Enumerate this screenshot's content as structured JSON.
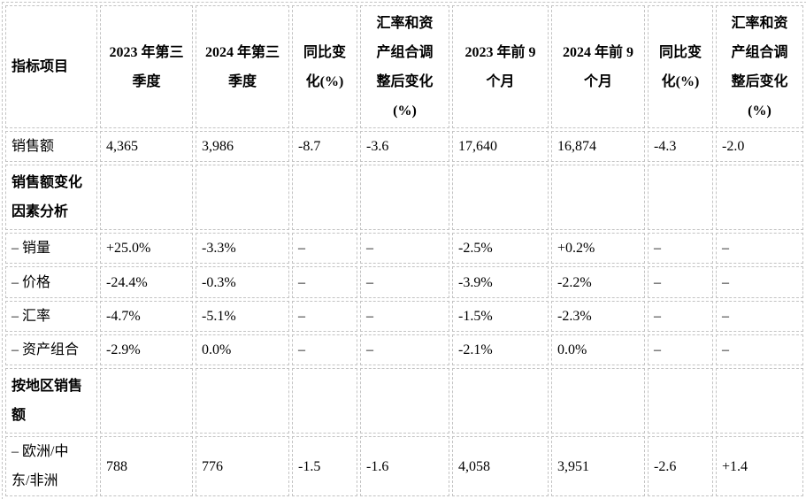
{
  "colors": {
    "background": "#ffffff",
    "text": "#000000",
    "grid_border": "#c3c3c3"
  },
  "table": {
    "columns": [
      "指标项目",
      "2023 年第三\n季度",
      "2024 年第三\n季度",
      "同比变\n化(%)",
      "汇率和资\n产组合调\n整后变化\n(%)",
      "2023 年前 9\n个月",
      "2024 年前 9\n个月",
      "同比变\n化(%)",
      "汇率和资\n产组合调\n整后变化\n(%)"
    ],
    "rows": [
      {
        "label": "销售额",
        "bold": false,
        "cells": [
          "4,365",
          "3,986",
          "-8.7",
          "-3.6",
          "17,640",
          "16,874",
          "-4.3",
          "-2.0"
        ]
      },
      {
        "label": "销售额变化\n因素分析",
        "bold": true,
        "cells": [
          "",
          "",
          "",
          "",
          "",
          "",
          "",
          ""
        ]
      },
      {
        "label": "– 销量",
        "bold": false,
        "cells": [
          "+25.0%",
          "-3.3%",
          "–",
          "–",
          "-2.5%",
          "+0.2%",
          "–",
          "–"
        ]
      },
      {
        "label": "– 价格",
        "bold": false,
        "cells": [
          "-24.4%",
          "-0.3%",
          "–",
          "–",
          "-3.9%",
          "-2.2%",
          "–",
          "–"
        ]
      },
      {
        "label": "– 汇率",
        "bold": false,
        "cells": [
          "-4.7%",
          "-5.1%",
          "–",
          "–",
          "-1.5%",
          "-2.3%",
          "–",
          "–"
        ]
      },
      {
        "label": "– 资产组合",
        "bold": false,
        "cells": [
          "-2.9%",
          "0.0%",
          "–",
          "–",
          "-2.1%",
          "0.0%",
          "–",
          "–"
        ]
      },
      {
        "label": "按地区销售\n额",
        "bold": true,
        "cells": [
          "",
          "",
          "",
          "",
          "",
          "",
          "",
          ""
        ]
      },
      {
        "label": "– 欧洲/中\n东/非洲",
        "bold": false,
        "cells": [
          "788",
          "776",
          "-1.5",
          "-1.6",
          "4,058",
          "3,951",
          "-2.6",
          "+1.4"
        ]
      }
    ]
  }
}
